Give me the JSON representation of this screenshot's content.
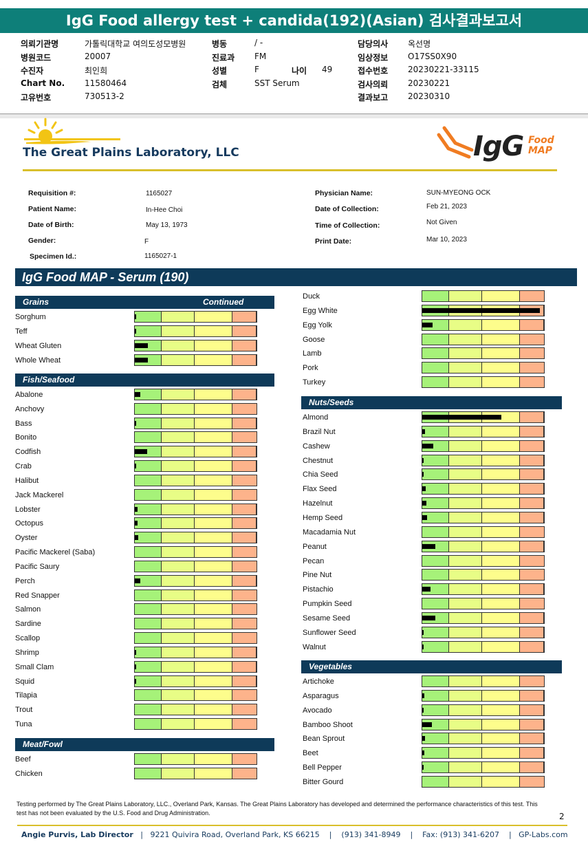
{
  "title": "IgG Food allergy test + candida(192)(Asian) 검사결과보고서",
  "kr_header": {
    "col1": [
      {
        "label": "의뢰기관명",
        "value": "가톨릭대학교 여의도성모병원"
      },
      {
        "label": "병원코드",
        "value": "20007"
      },
      {
        "label": "수진자",
        "value": "최인희"
      },
      {
        "label": "Chart No.",
        "value": "11580464"
      },
      {
        "label": "고유번호",
        "value": "730513-2"
      }
    ],
    "col2": [
      {
        "label": "병동",
        "value": "/ -"
      },
      {
        "label": "진료과",
        "value": "FM"
      },
      {
        "label": "성별",
        "value": "F"
      },
      {
        "label": "검체",
        "value": "SST Serum"
      }
    ],
    "age_label": "나이",
    "age_value": "49",
    "col3": [
      {
        "label": "담당의사",
        "value": "옥선명"
      },
      {
        "label": "임상정보",
        "value": "O17SS0X90"
      },
      {
        "label": "접수번호",
        "value": "20230221-33115"
      },
      {
        "label": "검사의뢰",
        "value": "20230221"
      },
      {
        "label": "결과보고",
        "value": "20230310"
      }
    ]
  },
  "lab_name": "The Great Plains Laboratory, LLC",
  "product_logo": {
    "big": "IgG",
    "small_1": "Food",
    "small_2": "MAP"
  },
  "patient_info": {
    "requisition_label": "Requisition #:",
    "requisition": "1165027",
    "patient_label": "Patient Name:",
    "patient": "In-Hee Choi",
    "dob_label": "Date of Birth:",
    "dob": "May 13, 1973",
    "gender_label": "Gender:",
    "gender": "F",
    "specimen_label": "Specimen Id.:",
    "specimen": "1165027-1",
    "physician_label": "Physician Name:",
    "physician": "SUN-MYEONG OCK",
    "collection_date_label": "Date of Collection:",
    "collection_date": "Feb 21, 2023",
    "collection_time_label": "Time of Collection:",
    "collection_time": "Not Given",
    "print_date_label": "Print Date:",
    "print_date": "Mar 10, 2023"
  },
  "section_title": "IgG Food MAP - Serum (190)",
  "colors": {
    "zone1": "#a6f279",
    "zone2": "#e8fd86",
    "zone3": "#fdfd8c",
    "zone4": "#fdb38b",
    "band": "#0e3a59",
    "title_bar": "#0e7f79",
    "accent_gold": "#d9bf2b"
  },
  "categories_left": [
    {
      "name": "Grains",
      "continued": "Continued",
      "items": [
        {
          "label": "Sorghum",
          "level": 0.005
        },
        {
          "label": "Teff",
          "level": 0.005
        },
        {
          "label": "Wheat Gluten",
          "level": 0.105
        },
        {
          "label": "Whole Wheat",
          "level": 0.105
        }
      ]
    },
    {
      "name": "Fish/Seafood",
      "items": [
        {
          "label": "Abalone",
          "level": 0.045
        },
        {
          "label": "Anchovy",
          "level": 0
        },
        {
          "label": "Bass",
          "level": 0.01
        },
        {
          "label": "Bonito",
          "level": 0
        },
        {
          "label": "Codfish",
          "level": 0.1
        },
        {
          "label": "Crab",
          "level": 0.01
        },
        {
          "label": "Halibut",
          "level": 0
        },
        {
          "label": "Jack Mackerel",
          "level": 0
        },
        {
          "label": "Lobster",
          "level": 0.02
        },
        {
          "label": "Octopus",
          "level": 0.02
        },
        {
          "label": "Oyster",
          "level": 0.03
        },
        {
          "label": "Pacific Mackerel (Saba)",
          "level": 0
        },
        {
          "label": "Pacific Saury",
          "level": 0
        },
        {
          "label": "Perch",
          "level": 0.045
        },
        {
          "label": "Red Snapper",
          "level": 0
        },
        {
          "label": "Salmon",
          "level": 0
        },
        {
          "label": "Sardine",
          "level": 0
        },
        {
          "label": "Scallop",
          "level": 0
        },
        {
          "label": "Shrimp",
          "level": 0.01
        },
        {
          "label": "Small Clam",
          "level": 0.005
        },
        {
          "label": "Squid",
          "level": 0.01
        },
        {
          "label": "Tilapia",
          "level": 0
        },
        {
          "label": "Trout",
          "level": 0
        },
        {
          "label": "Tuna",
          "level": 0
        }
      ]
    },
    {
      "name": "Meat/Fowl",
      "items": [
        {
          "label": "Beef",
          "level": 0
        },
        {
          "label": "Chicken",
          "level": 0
        }
      ]
    }
  ],
  "right_continued": [
    {
      "label": "Duck",
      "level": 0
    },
    {
      "label": "Egg White",
      "level": 0.965
    },
    {
      "label": "Egg Yolk",
      "level": 0.085
    },
    {
      "label": "Goose",
      "level": 0
    },
    {
      "label": "Lamb",
      "level": 0
    },
    {
      "label": "Pork",
      "level": 0
    },
    {
      "label": "Turkey",
      "level": 0
    }
  ],
  "categories_right": [
    {
      "name": "Nuts/Seeds",
      "items": [
        {
          "label": "Almond",
          "level": 0.65
        },
        {
          "label": "Brazil Nut",
          "level": 0.02
        },
        {
          "label": "Cashew",
          "level": 0.09
        },
        {
          "label": "Chestnut",
          "level": 0.005
        },
        {
          "label": "Chia Seed",
          "level": 0.01
        },
        {
          "label": "Flax Seed",
          "level": 0.03
        },
        {
          "label": "Hazelnut",
          "level": 0.035
        },
        {
          "label": "Hemp Seed",
          "level": 0.04
        },
        {
          "label": "Macadamia Nut",
          "level": 0
        },
        {
          "label": "Peanut",
          "level": 0.11
        },
        {
          "label": "Pecan",
          "level": 0
        },
        {
          "label": "Pine Nut",
          "level": 0
        },
        {
          "label": "Pistachio",
          "level": 0.065
        },
        {
          "label": "Pumpkin Seed",
          "level": 0
        },
        {
          "label": "Sesame Seed",
          "level": 0.11
        },
        {
          "label": "Sunflower Seed",
          "level": 0.01
        },
        {
          "label": "Walnut",
          "level": 0.005
        }
      ]
    },
    {
      "name": "Vegetables",
      "items": [
        {
          "label": "Artichoke",
          "level": 0
        },
        {
          "label": "Asparagus",
          "level": 0.015
        },
        {
          "label": "Avocado",
          "level": 0.01
        },
        {
          "label": "Bamboo Shoot",
          "level": 0.08
        },
        {
          "label": "Bean Sprout",
          "level": 0.02
        },
        {
          "label": "Beet",
          "level": 0.015
        },
        {
          "label": "Bell Pepper",
          "level": 0.005
        },
        {
          "label": "Bitter Gourd",
          "level": 0
        }
      ]
    }
  ],
  "disclaimer": "Testing performed by The Great Plains Laboratory, LLC., Overland Park, Kansas.  The Great Plains Laboratory has developed and determined the performance characteristics of this test.  This test has not been evaluated by the U.S.  Food and Drug Administration.",
  "page_number": "2",
  "footer": {
    "director": "Angie Purvis, Lab Director",
    "address": "9221 Quivira Road, Overland Park, KS 66215",
    "phone": "(913) 341-8949",
    "fax": "Fax: (913) 341-6207",
    "website": "GP-Labs.com"
  }
}
